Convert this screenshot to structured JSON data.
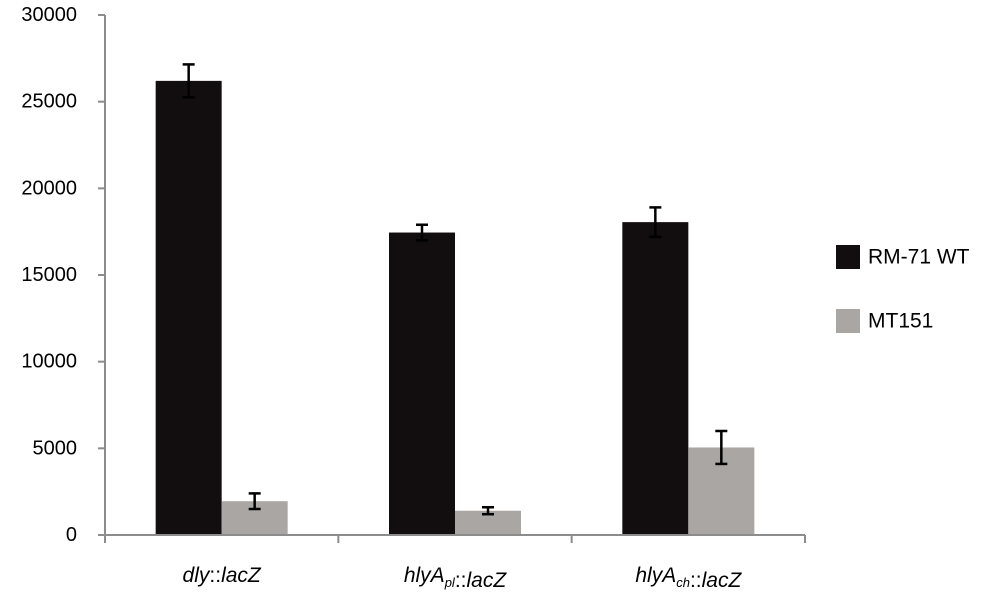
{
  "chart_data": {
    "type": "bar",
    "title": "",
    "xlabel": "",
    "ylabel": "",
    "ylim": [
      0,
      30000
    ],
    "yticks": [
      0,
      5000,
      10000,
      15000,
      20000,
      25000,
      30000
    ],
    "ytick_labels": [
      "0",
      "5000",
      "10000",
      "15000",
      "20000",
      "25000",
      "30000"
    ],
    "categories": [
      {
        "segments": [
          {
            "text": "dly",
            "sub": false
          },
          {
            "text": "::",
            "sub": false
          },
          {
            "text": "lacZ",
            "sub": false
          }
        ]
      },
      {
        "segments": [
          {
            "text": "hlyA",
            "sub": false
          },
          {
            "text": "pl",
            "sub": true
          },
          {
            "text": "::",
            "sub": false
          },
          {
            "text": "lacZ",
            "sub": false
          }
        ]
      },
      {
        "segments": [
          {
            "text": "hlyA",
            "sub": false
          },
          {
            "text": "ch",
            "sub": true
          },
          {
            "text": "::",
            "sub": false
          },
          {
            "text": "lacZ",
            "sub": false
          }
        ]
      }
    ],
    "series": [
      {
        "name": "RM-71 WT",
        "color": "#120d0f",
        "values": [
          26200,
          17450,
          18050
        ],
        "errors": [
          950,
          450,
          850
        ]
      },
      {
        "name": "MT151",
        "color": "#aaa6a3",
        "values": [
          1950,
          1400,
          5050
        ],
        "errors": [
          450,
          200,
          950
        ]
      }
    ],
    "legend_position": "right",
    "grid": false
  }
}
